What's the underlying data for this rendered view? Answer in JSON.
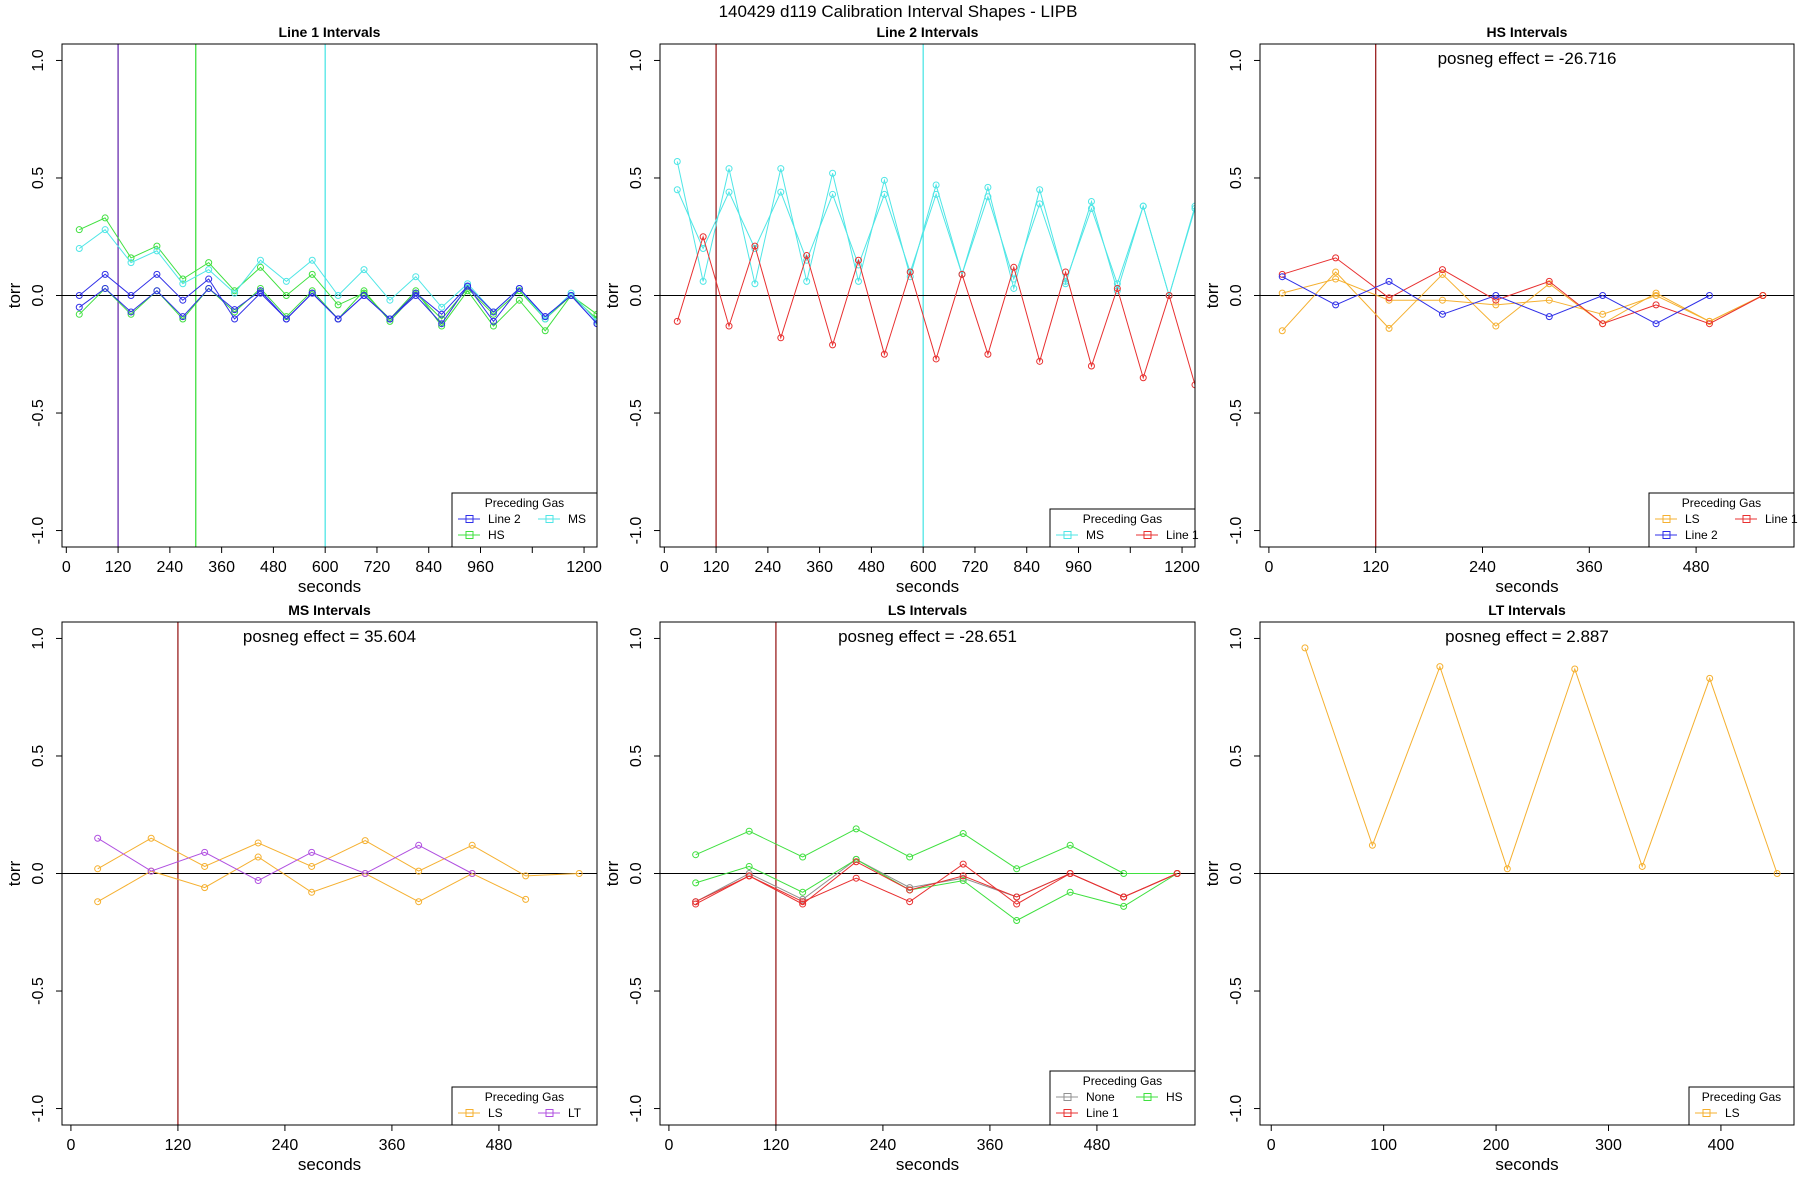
{
  "main_title": "140429   d119   Calibration Interval Shapes - LIPB",
  "colors": {
    "Line 2": "#2f2fe8",
    "Line 1": "#e83030",
    "HS": "#3fe03f",
    "MS": "#4fe6e6",
    "LS": "#f5b030",
    "LT": "#b050e0",
    "None": "#909090",
    "zero_line": "#000000",
    "vline_dark": "#9a2020"
  },
  "chart_data": [
    {
      "type": "line",
      "title": "Line 1 Intervals",
      "xlabel": "seconds",
      "ylabel": "torr",
      "xlim": [
        -10,
        1230
      ],
      "ylim": [
        -1.07,
        1.07
      ],
      "xticks": [
        0,
        120,
        240,
        360,
        480,
        600,
        720,
        840,
        960,
        1080,
        1200
      ],
      "xtick_labels": [
        "0",
        "120",
        "240",
        "360",
        "480",
        "600",
        "720",
        "840",
        "960",
        "",
        "1200"
      ],
      "yticks": [
        -1.0,
        -0.5,
        0.0,
        0.5,
        1.0
      ],
      "ytick_labels": [
        "-1.0",
        "-0.5",
        "0.0",
        "0.5",
        "1.0"
      ],
      "zero_line": true,
      "vlines": [
        {
          "x": 120,
          "color": "#6a2fb0"
        },
        {
          "x": 300,
          "color": "#3fe03f"
        },
        {
          "x": 600,
          "color": "#4fe6e6"
        }
      ],
      "annotation": "",
      "legend": {
        "title": "Preceding Gas",
        "position": "bottom-right",
        "columns": 2,
        "entries": [
          "Line 2",
          "MS",
          "HS"
        ]
      },
      "series": [
        {
          "name": "HS",
          "x": [
            30,
            90,
            150,
            210,
            270,
            330,
            390,
            450,
            510,
            570,
            630,
            690,
            750,
            810,
            870,
            930,
            990,
            1050,
            1110,
            1170,
            1230
          ],
          "y": [
            0.28,
            0.33,
            0.16,
            0.21,
            0.07,
            0.14,
            0.02,
            0.12,
            0.0,
            0.09,
            -0.04,
            0.01,
            -0.1,
            0.02,
            -0.13,
            0.02,
            -0.13,
            -0.02,
            -0.15,
            0.0,
            -0.08
          ]
        },
        {
          "name": "HS",
          "x": [
            30,
            90,
            150,
            210,
            270,
            330,
            390,
            450,
            510,
            570,
            630,
            690,
            750,
            810,
            870,
            930,
            990,
            1050,
            1110,
            1170,
            1230
          ],
          "y": [
            -0.08,
            0.03,
            -0.08,
            0.02,
            -0.1,
            0.03,
            -0.07,
            0.03,
            -0.09,
            0.02,
            -0.1,
            0.02,
            -0.11,
            0.01,
            -0.1,
            0.03,
            -0.08,
            0.02,
            -0.1,
            0.0,
            -0.1
          ]
        },
        {
          "name": "MS",
          "x": [
            30,
            90,
            150,
            210,
            270,
            330,
            390,
            450,
            510,
            570,
            630,
            690,
            750,
            810,
            870,
            930,
            990,
            1050,
            1110,
            1170,
            1230
          ],
          "y": [
            0.2,
            0.28,
            0.14,
            0.19,
            0.05,
            0.11,
            0.01,
            0.15,
            0.06,
            0.15,
            0.0,
            0.11,
            -0.02,
            0.08,
            -0.05,
            0.05,
            -0.07,
            0.03,
            -0.1,
            0.01,
            -0.11
          ]
        },
        {
          "name": "Line 2",
          "x": [
            30,
            90,
            150,
            210,
            270,
            330,
            390,
            450,
            510,
            570,
            630,
            690,
            750,
            810,
            870,
            930,
            990,
            1050,
            1110,
            1170,
            1230
          ],
          "y": [
            -0.05,
            0.03,
            -0.07,
            0.02,
            -0.09,
            0.03,
            -0.06,
            0.02,
            -0.1,
            0.01,
            -0.1,
            0.0,
            -0.1,
            0.01,
            -0.08,
            0.04,
            -0.07,
            0.03,
            -0.09,
            0.0,
            -0.12
          ]
        },
        {
          "name": "Line 2",
          "x": [
            30,
            90,
            150,
            210,
            270,
            330,
            390,
            450,
            510,
            570,
            630,
            690,
            750,
            810,
            870,
            930,
            990,
            1050,
            1110,
            1170,
            1230
          ],
          "y": [
            0.0,
            0.09,
            0.0,
            0.09,
            -0.02,
            0.07,
            -0.1,
            0.01,
            -0.1,
            0.01,
            -0.1,
            0.0,
            -0.1,
            0.0,
            -0.12,
            0.04,
            -0.11,
            0.03,
            -0.09,
            0.0,
            -0.12
          ]
        }
      ]
    },
    {
      "type": "line",
      "title": "Line 2 Intervals",
      "xlabel": "seconds",
      "ylabel": "torr",
      "xlim": [
        -10,
        1230
      ],
      "ylim": [
        -1.07,
        1.07
      ],
      "xticks": [
        0,
        120,
        240,
        360,
        480,
        600,
        720,
        840,
        960,
        1080,
        1200
      ],
      "xtick_labels": [
        "0",
        "120",
        "240",
        "360",
        "480",
        "600",
        "720",
        "840",
        "960",
        "",
        "1200"
      ],
      "yticks": [
        -1.0,
        -0.5,
        0.0,
        0.5,
        1.0
      ],
      "ytick_labels": [
        "-1.0",
        "-0.5",
        "0.0",
        "0.5",
        "1.0"
      ],
      "zero_line": true,
      "vlines": [
        {
          "x": 120,
          "color": "#9a2020"
        },
        {
          "x": 600,
          "color": "#4fe6e6"
        }
      ],
      "annotation": "",
      "legend": {
        "title": "Preceding Gas",
        "position": "bottom-right",
        "columns": 2,
        "entries": [
          "MS",
          "Line 1"
        ]
      },
      "series": [
        {
          "name": "MS",
          "x": [
            30,
            90,
            150,
            210,
            270,
            330,
            390,
            450,
            510,
            570,
            630,
            690,
            750,
            810,
            870,
            930,
            990,
            1050,
            1110,
            1170,
            1230
          ],
          "y": [
            0.57,
            0.06,
            0.54,
            0.05,
            0.54,
            0.06,
            0.52,
            0.06,
            0.49,
            0.08,
            0.47,
            0.09,
            0.46,
            0.03,
            0.45,
            0.05,
            0.4,
            0.02,
            0.38,
            0.0,
            0.38
          ]
        },
        {
          "name": "MS",
          "x": [
            30,
            90,
            150,
            210,
            270,
            330,
            390,
            450,
            510,
            570,
            630,
            690,
            750,
            810,
            870,
            930,
            990,
            1050,
            1110,
            1170,
            1230
          ],
          "y": [
            0.45,
            0.2,
            0.44,
            0.2,
            0.44,
            0.15,
            0.43,
            0.13,
            0.43,
            0.1,
            0.43,
            0.09,
            0.42,
            0.07,
            0.39,
            0.06,
            0.37,
            0.05,
            0.38,
            0.0,
            0.37
          ]
        },
        {
          "name": "Line 1",
          "x": [
            30,
            90,
            150,
            210,
            270,
            330,
            390,
            450,
            510,
            570,
            630,
            690,
            750,
            810,
            870,
            930,
            990,
            1050,
            1110,
            1170,
            1230
          ],
          "y": [
            -0.11,
            0.25,
            -0.13,
            0.21,
            -0.18,
            0.17,
            -0.21,
            0.15,
            -0.25,
            0.1,
            -0.27,
            0.09,
            -0.25,
            0.12,
            -0.28,
            0.1,
            -0.3,
            0.03,
            -0.35,
            0.0,
            -0.38
          ]
        }
      ]
    },
    {
      "type": "line",
      "title": "HS Intervals",
      "xlabel": "seconds",
      "ylabel": "torr",
      "xlim": [
        -10,
        590
      ],
      "ylim": [
        -1.07,
        1.07
      ],
      "xticks": [
        0,
        120,
        240,
        360,
        480
      ],
      "xtick_labels": [
        "0",
        "120",
        "240",
        "360",
        "480"
      ],
      "yticks": [
        -1.0,
        -0.5,
        0.0,
        0.5,
        1.0
      ],
      "ytick_labels": [
        "-1.0",
        "-0.5",
        "0.0",
        "0.5",
        "1.0"
      ],
      "zero_line": true,
      "vlines": [
        {
          "x": 120,
          "color": "#9a2020"
        }
      ],
      "annotation": "posneg effect = -26.716",
      "legend": {
        "title": "Preceding Gas",
        "position": "bottom-right",
        "columns": 2,
        "entries": [
          "LS",
          "Line 1",
          "Line 2"
        ]
      },
      "series": [
        {
          "name": "LS",
          "x": [
            15,
            75,
            135,
            195,
            255,
            315,
            375,
            435,
            495,
            555
          ],
          "y": [
            -0.15,
            0.1,
            -0.14,
            0.09,
            -0.13,
            0.05,
            -0.12,
            0.01,
            -0.11,
            0.0
          ]
        },
        {
          "name": "LS",
          "x": [
            15,
            75,
            135,
            195,
            255,
            315,
            375,
            435,
            495,
            555
          ],
          "y": [
            0.01,
            0.07,
            -0.02,
            -0.02,
            -0.04,
            -0.02,
            -0.08,
            0.0,
            -0.11,
            0.0
          ]
        },
        {
          "name": "Line 1",
          "x": [
            15,
            75,
            135,
            195,
            255,
            315,
            375,
            435,
            495,
            555
          ],
          "y": [
            0.09,
            0.16,
            -0.01,
            0.11,
            -0.02,
            0.06,
            -0.12,
            -0.04,
            -0.12,
            0.0
          ]
        },
        {
          "name": "Line 2",
          "x": [
            15,
            75,
            135,
            195,
            255,
            315,
            375,
            435,
            495
          ],
          "y": [
            0.08,
            -0.04,
            0.06,
            -0.08,
            0.0,
            -0.09,
            0.0,
            -0.12,
            0.0
          ]
        }
      ]
    },
    {
      "type": "line",
      "title": "MS Intervals",
      "xlabel": "seconds",
      "ylabel": "torr",
      "xlim": [
        -10,
        590
      ],
      "ylim": [
        -1.07,
        1.07
      ],
      "xticks": [
        0,
        120,
        240,
        360,
        480
      ],
      "xtick_labels": [
        "0",
        "120",
        "240",
        "360",
        "480"
      ],
      "yticks": [
        -1.0,
        -0.5,
        0.0,
        0.5,
        1.0
      ],
      "ytick_labels": [
        "-1.0",
        "-0.5",
        "0.0",
        "0.5",
        "1.0"
      ],
      "zero_line": true,
      "vlines": [
        {
          "x": 120,
          "color": "#9a2020"
        }
      ],
      "annotation": "posneg effect = 35.604",
      "legend": {
        "title": "Preceding Gas",
        "position": "bottom-right",
        "columns": 2,
        "entries": [
          "LS",
          "LT"
        ]
      },
      "series": [
        {
          "name": "LS",
          "x": [
            30,
            90,
            150,
            210,
            270,
            330,
            390,
            450,
            510,
            570
          ],
          "y": [
            0.02,
            0.15,
            0.03,
            0.13,
            0.03,
            0.14,
            0.01,
            0.12,
            -0.01,
            0.0
          ]
        },
        {
          "name": "LS",
          "x": [
            30,
            90,
            150,
            210,
            270,
            330,
            390,
            450,
            510
          ],
          "y": [
            -0.12,
            0.01,
            -0.06,
            0.07,
            -0.08,
            0.0,
            -0.12,
            0.0,
            -0.11
          ]
        },
        {
          "name": "LT",
          "x": [
            30,
            90,
            150,
            210,
            270,
            330,
            390,
            450
          ],
          "y": [
            0.15,
            0.01,
            0.09,
            -0.03,
            0.09,
            0.0,
            0.12,
            0.0
          ]
        }
      ]
    },
    {
      "type": "line",
      "title": "LS Intervals",
      "xlabel": "seconds",
      "ylabel": "torr",
      "xlim": [
        -10,
        590
      ],
      "ylim": [
        -1.07,
        1.07
      ],
      "xticks": [
        0,
        120,
        240,
        360,
        480
      ],
      "xtick_labels": [
        "0",
        "120",
        "240",
        "360",
        "480"
      ],
      "yticks": [
        -1.0,
        -0.5,
        0.0,
        0.5,
        1.0
      ],
      "ytick_labels": [
        "-1.0",
        "-0.5",
        "0.0",
        "0.5",
        "1.0"
      ],
      "zero_line": true,
      "vlines": [
        {
          "x": 120,
          "color": "#9a2020"
        }
      ],
      "annotation": "posneg effect = -28.651",
      "legend": {
        "title": "Preceding Gas",
        "position": "bottom-right",
        "columns": 2,
        "entries": [
          "None",
          "HS",
          "Line 1"
        ]
      },
      "series": [
        {
          "name": "None",
          "x": [
            30,
            90,
            150,
            210,
            270,
            330,
            390,
            450,
            510,
            570
          ],
          "y": [
            -0.12,
            0.0,
            -0.11,
            0.06,
            -0.06,
            -0.02,
            -0.1,
            0.0,
            -0.1,
            0.0
          ]
        },
        {
          "name": "HS",
          "x": [
            30,
            90,
            150,
            210,
            270,
            330,
            390,
            450,
            510,
            570
          ],
          "y": [
            0.08,
            0.18,
            0.07,
            0.19,
            0.07,
            0.17,
            0.02,
            0.12,
            0.0,
            0.0
          ]
        },
        {
          "name": "HS",
          "x": [
            30,
            90,
            150,
            210,
            270,
            330,
            390,
            450,
            510,
            570
          ],
          "y": [
            -0.04,
            0.03,
            -0.08,
            0.06,
            -0.07,
            -0.03,
            -0.2,
            -0.08,
            -0.14,
            0.0
          ]
        },
        {
          "name": "Line 1",
          "x": [
            30,
            90,
            150,
            210,
            270,
            330,
            390,
            450,
            510,
            570
          ],
          "y": [
            -0.12,
            -0.01,
            -0.12,
            -0.02,
            -0.12,
            0.04,
            -0.13,
            0.0,
            -0.1,
            0.0
          ]
        },
        {
          "name": "Line 1",
          "x": [
            30,
            90,
            150,
            210,
            270,
            330,
            390,
            450,
            510,
            570
          ],
          "y": [
            -0.13,
            -0.01,
            -0.13,
            0.05,
            -0.07,
            -0.01,
            -0.1,
            0.0,
            -0.1,
            0.0
          ]
        }
      ]
    },
    {
      "type": "line",
      "title": "LT Intervals",
      "xlabel": "seconds",
      "ylabel": "torr",
      "xlim": [
        -10,
        465
      ],
      "ylim": [
        -1.07,
        1.07
      ],
      "xticks": [
        0,
        100,
        200,
        300,
        400
      ],
      "xtick_labels": [
        "0",
        "100",
        "200",
        "300",
        "400"
      ],
      "yticks": [
        -1.0,
        -0.5,
        0.0,
        0.5,
        1.0
      ],
      "ytick_labels": [
        "-1.0",
        "-0.5",
        "0.0",
        "0.5",
        "1.0"
      ],
      "zero_line": true,
      "vlines": [],
      "annotation": "posneg effect = 2.887",
      "legend": {
        "title": "Preceding Gas",
        "position": "bottom-right",
        "columns": 1,
        "entries": [
          "LS"
        ]
      },
      "series": [
        {
          "name": "LS",
          "x": [
            30,
            90,
            150,
            210,
            270,
            330,
            390,
            450
          ],
          "y": [
            0.96,
            0.12,
            0.88,
            0.02,
            0.87,
            0.03,
            0.83,
            0.0
          ]
        }
      ]
    }
  ]
}
